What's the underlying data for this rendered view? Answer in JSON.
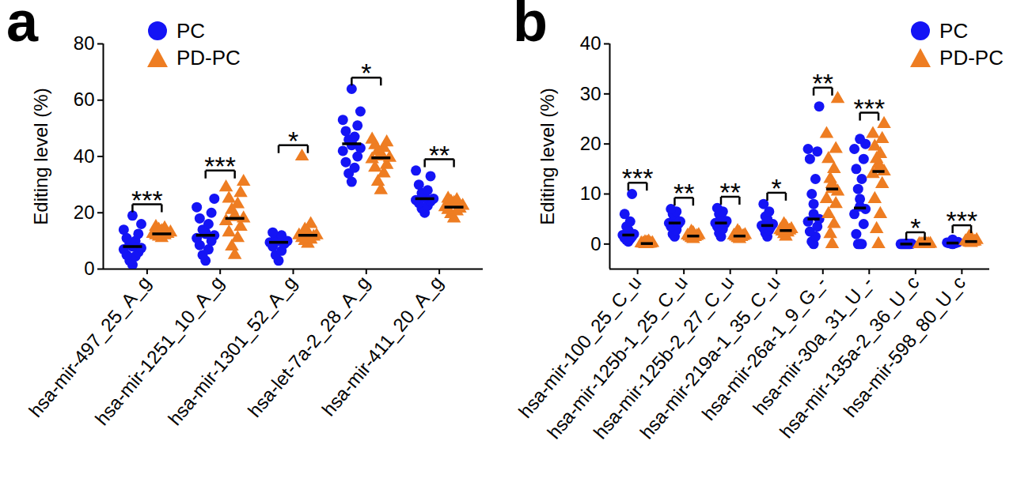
{
  "chart_data": [
    {
      "type": "scatter",
      "title": "a",
      "ylabel": "Editing level (%)",
      "categories": [
        "hsa-mir-497_25_A_g",
        "hsa-mir-1251_10_A_g",
        "hsa-mir-1301_52_A_g",
        "hsa-let-7a-2_28_A_g",
        "hsa-mir-411_20_A_g"
      ],
      "ylim": [
        0,
        80
      ],
      "yticks": [
        0,
        20,
        40,
        60,
        80
      ],
      "legend": "top-left",
      "significance": [
        "***",
        "***",
        "*",
        "*",
        "**"
      ],
      "series": [
        {
          "name": "PC",
          "color": "#1414f5",
          "marker": "circle",
          "values": [
            [
              1.5,
              3,
              4.5,
              5,
              6,
              7,
              7.5,
              8,
              8.5,
              9,
              10,
              11,
              12.5,
              14,
              16,
              19
            ],
            [
              3,
              5,
              7,
              8.5,
              10,
              11,
              12,
              12.5,
              13,
              14,
              16,
              18,
              20,
              22,
              25
            ],
            [
              3,
              5,
              6.5,
              8,
              9,
              9.5,
              10,
              10,
              10.5,
              11,
              12,
              13
            ],
            [
              31,
              34,
              36,
              38,
              40,
              42,
              43,
              44,
              45,
              46,
              47,
              49,
              51,
              53,
              56,
              64
            ],
            [
              20,
              21.5,
              22.5,
              23.5,
              24,
              24.5,
              25,
              25.5,
              26,
              27,
              28,
              30,
              33,
              35
            ]
          ],
          "medians": [
            8,
            12,
            9.5,
            44.5,
            25
          ]
        },
        {
          "name": "PD-PC",
          "color": "#ee7d22",
          "marker": "triangle",
          "values": [
            [
              11,
              11.5,
              12,
              12,
              12.5,
              12.5,
              13,
              13,
              13.5,
              14,
              14.5,
              15
            ],
            [
              5,
              8,
              11,
              13,
              15,
              17,
              18,
              18.5,
              19,
              21,
              23,
              25,
              27,
              29,
              31
            ],
            [
              9,
              10,
              10.5,
              11,
              11.5,
              12,
              12,
              12.5,
              13,
              14,
              16,
              40
            ],
            [
              28,
              31,
              34,
              36,
              37,
              39,
              39.5,
              40,
              41,
              42,
              43,
              44,
              45,
              46
            ],
            [
              18,
              19.5,
              20.5,
              21,
              21.5,
              22,
              22.5,
              23,
              23.5,
              24,
              24.5,
              25
            ]
          ],
          "medians": [
            12.5,
            18,
            12,
            39.5,
            22
          ]
        }
      ]
    },
    {
      "type": "scatter",
      "title": "b",
      "ylabel": "Editing level (%)",
      "categories": [
        "hsa-mir-100_25_C_u",
        "hsa-mir-125b-1_25_C_u",
        "hsa-mir-125b-2_27_C_u",
        "hsa-mir-219a-1_35_C_u",
        "hsa-mir-26a-1_9_G_-",
        "hsa-mir-30a_31_U_-",
        "hsa-mir-135a-2_36_U_c",
        "hsa-mir-598_80_U_c"
      ],
      "ylim": [
        -5,
        40
      ],
      "yticks": [
        0,
        10,
        20,
        30,
        40
      ],
      "legend": "top-right",
      "significance": [
        "***",
        "**",
        "**",
        "*",
        "**",
        "***",
        "*",
        "***"
      ],
      "series": [
        {
          "name": "PC",
          "color": "#1414f5",
          "marker": "circle",
          "values": [
            [
              0.5,
              0.8,
              1,
              1.2,
              1.5,
              1.8,
              2,
              2.3,
              2.8,
              3.5,
              4.5,
              6,
              10
            ],
            [
              1.5,
              2,
              2.8,
              3.5,
              4,
              4.2,
              4.5,
              5,
              5.5,
              6,
              6.5,
              7
            ],
            [
              1.5,
              2.2,
              3,
              3.5,
              4,
              4.2,
              4.6,
              5,
              5.5,
              6,
              6.5,
              7.2
            ],
            [
              1.5,
              2.2,
              2.8,
              3.2,
              3.5,
              3.7,
              4,
              4.5,
              5,
              5.5,
              6.5,
              8
            ],
            [
              0,
              0.5,
              1.5,
              2.5,
              3.5,
              4.5,
              5,
              6,
              8,
              10,
              13,
              17,
              18.5,
              19,
              27.5
            ],
            [
              0,
              0,
              0,
              2,
              4,
              6,
              7,
              7.5,
              9,
              11,
              13,
              15,
              17,
              19,
              20,
              21
            ],
            [
              0,
              0,
              0,
              0,
              0,
              0,
              0.05,
              0.1
            ],
            [
              0,
              0.1,
              0.15,
              0.2,
              0.25,
              0.3,
              0.4,
              0.6,
              0.9
            ]
          ],
          "medians": [
            1.8,
            4.2,
            4.2,
            3.7,
            5,
            7.2,
            0,
            0.2
          ]
        },
        {
          "name": "PD-PC",
          "color": "#ee7d22",
          "marker": "triangle",
          "values": [
            [
              0,
              0,
              0.05,
              0.1,
              0.1,
              0.15,
              0.2,
              0.25,
              0.3,
              0.4,
              0.5
            ],
            [
              1,
              1.2,
              1.4,
              1.5,
              1.6,
              1.7,
              1.8,
              2,
              2.2,
              2.5
            ],
            [
              1,
              1.2,
              1.4,
              1.5,
              1.6,
              1.7,
              1.8,
              2,
              2.2,
              2.6
            ],
            [
              1.5,
              2,
              2.3,
              2.5,
              2.7,
              2.8,
              3,
              3.2,
              3.5,
              4
            ],
            [
              0,
              2,
              4,
              6,
              8,
              9,
              10.5,
              11,
              12,
              13,
              15,
              17,
              19,
              22,
              29
            ],
            [
              0,
              3,
              6,
              9,
              12,
              14,
              14.5,
              15,
              16,
              17,
              18,
              19.5,
              21,
              22,
              24
            ],
            [
              0,
              0,
              0,
              0,
              0,
              0,
              0.05
            ],
            [
              0.2,
              0.3,
              0.4,
              0.5,
              0.5,
              0.6,
              0.8,
              1,
              1.3,
              1.5
            ]
          ],
          "medians": [
            0.1,
            1.6,
            1.6,
            2.7,
            11,
            14.5,
            0,
            0.5
          ]
        }
      ]
    }
  ]
}
